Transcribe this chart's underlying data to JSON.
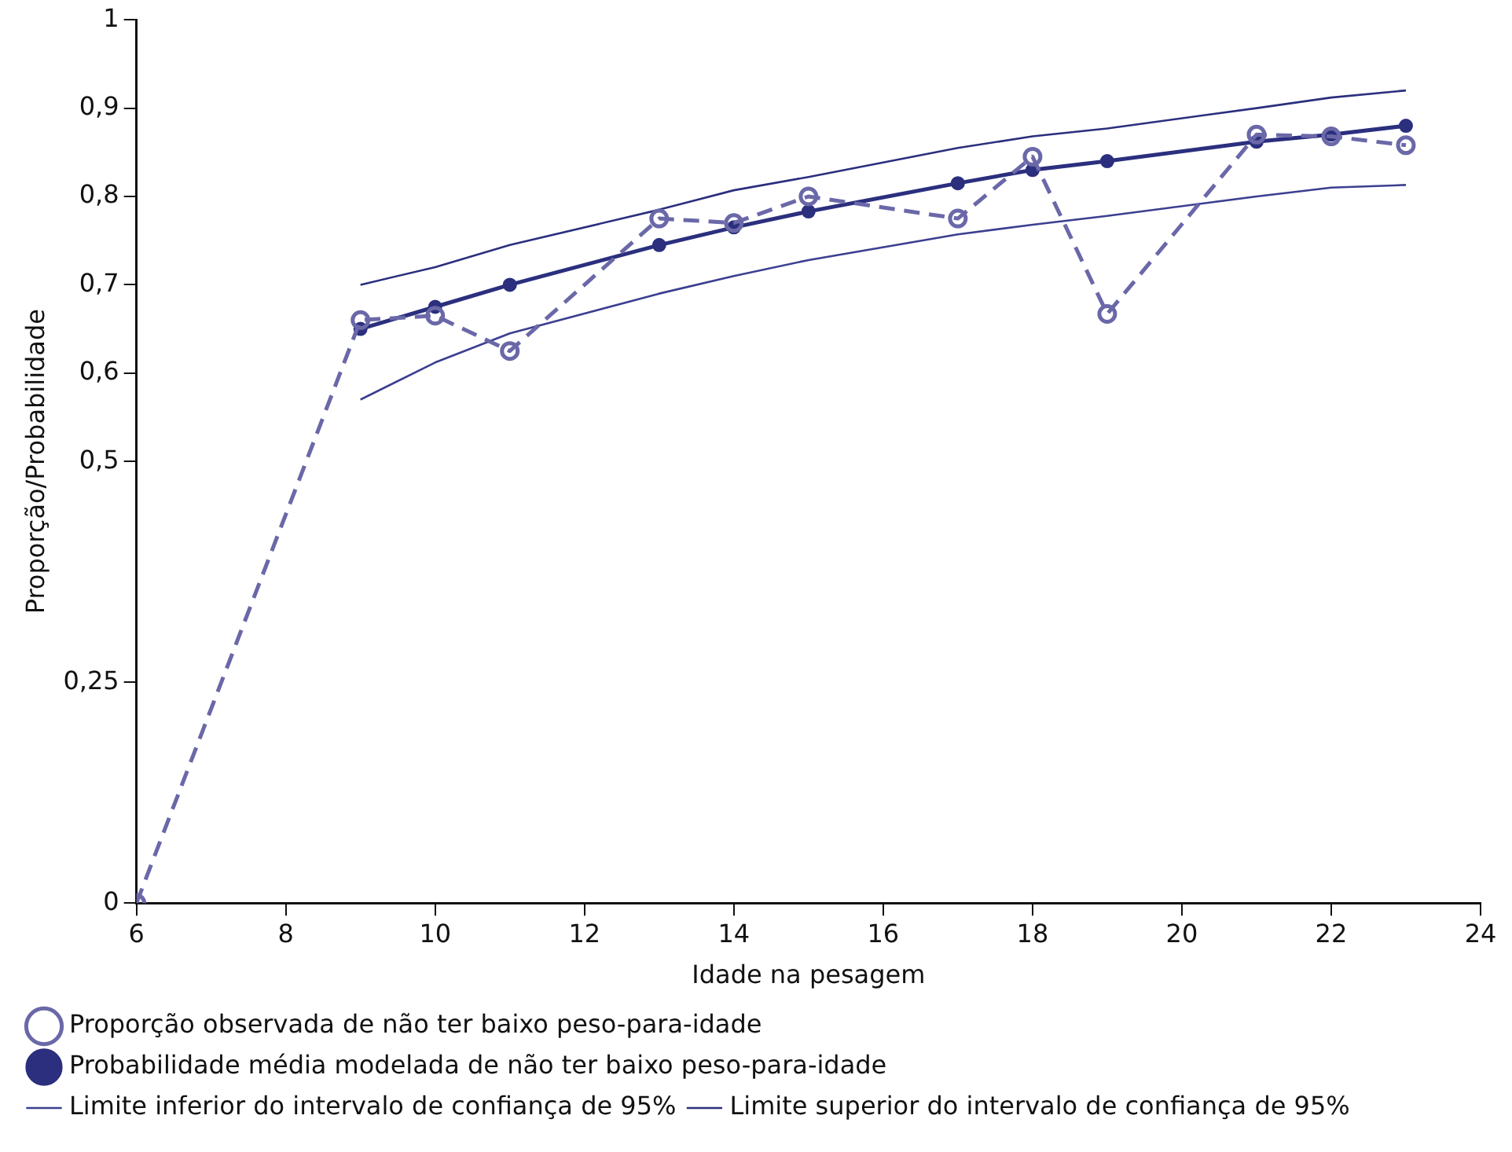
{
  "chart_data": {
    "type": "line",
    "xlabel": "Idade na pesagem",
    "ylabel": "Proporção/Probabilidade",
    "xlim": [
      6,
      24
    ],
    "xticks": [
      6,
      8,
      10,
      12,
      14,
      16,
      18,
      20,
      22,
      24
    ],
    "ylim": [
      0,
      1
    ],
    "yticks": [
      {
        "value": 0,
        "label": "0"
      },
      {
        "value": 0.25,
        "label": "0,25"
      },
      {
        "value": 0.5,
        "label": "0,5"
      },
      {
        "value": 0.6,
        "label": "0,6"
      },
      {
        "value": 0.7,
        "label": "0,7"
      },
      {
        "value": 0.8,
        "label": "0,8"
      },
      {
        "value": 0.9,
        "label": "0,9"
      },
      {
        "value": 1,
        "label": "1"
      }
    ],
    "grid": false,
    "legend": "bottom",
    "series": [
      {
        "name": "Probabilidade média modelada de não ter baixo peso-para-idade",
        "color": "#2b2f7e",
        "marker": "circle",
        "line_style": "solid",
        "x": [
          9,
          10,
          11,
          13,
          14,
          15,
          17,
          18,
          19,
          21,
          22,
          23
        ],
        "values": [
          0.65,
          0.675,
          0.7,
          0.745,
          0.765,
          0.783,
          0.815,
          0.83,
          0.84,
          0.862,
          0.87,
          0.88
        ]
      },
      {
        "name": "Proporção observada de não ter baixo peso-para-idade",
        "color": "#6a68a8",
        "marker": "open circle",
        "line_style": "dashed",
        "x": [
          6,
          9,
          10,
          11,
          13,
          14,
          15,
          17,
          18,
          19,
          21,
          22,
          23
        ],
        "values": [
          0,
          0.66,
          0.665,
          0.625,
          0.775,
          0.77,
          0.8,
          0.775,
          0.845,
          0.667,
          0.87,
          0.868,
          0.858
        ]
      },
      {
        "name": "Limite inferior do intervalo de confiança de 95%",
        "color": "#3b3f90",
        "marker": "none",
        "line_style": "solid",
        "x": [
          9,
          10,
          11,
          13,
          14,
          15,
          17,
          18,
          19,
          21,
          22,
          23
        ],
        "values": [
          0.57,
          0.612,
          0.645,
          0.69,
          0.71,
          0.728,
          0.757,
          0.768,
          0.778,
          0.8,
          0.81,
          0.813
        ]
      },
      {
        "name": "Limite superior do intervalo de confiança de 95%",
        "color": "#2b2f7e",
        "marker": "none",
        "line_style": "solid",
        "x": [
          9,
          10,
          11,
          13,
          14,
          15,
          17,
          18,
          19,
          21,
          22,
          23
        ],
        "values": [
          0.7,
          0.72,
          0.745,
          0.785,
          0.807,
          0.822,
          0.855,
          0.868,
          0.877,
          0.9,
          0.912,
          0.92
        ]
      }
    ]
  }
}
